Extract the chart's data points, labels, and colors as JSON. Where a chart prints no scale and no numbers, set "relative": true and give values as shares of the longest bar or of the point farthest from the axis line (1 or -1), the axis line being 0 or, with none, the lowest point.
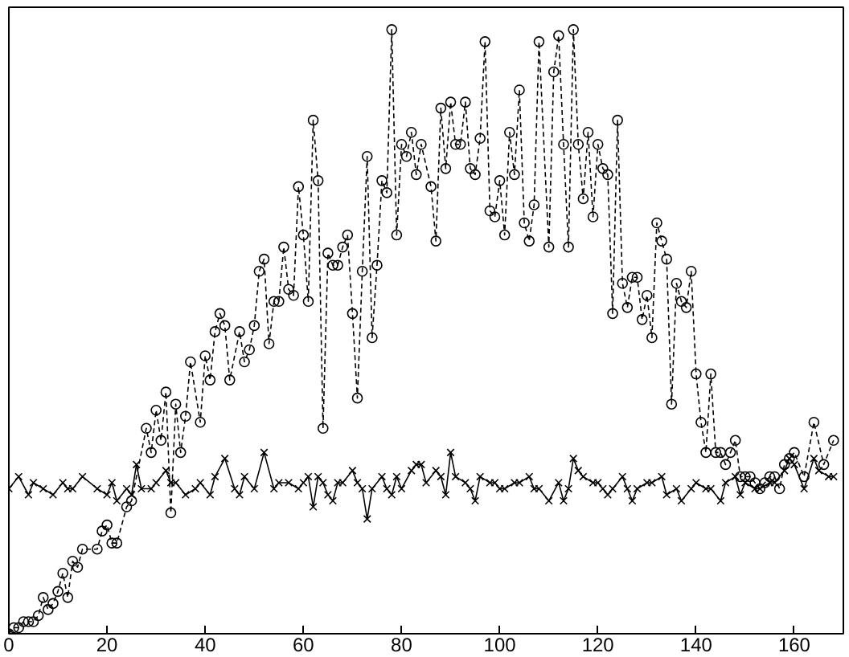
{
  "chart_data": {
    "type": "line",
    "relative": true,
    "xlim": [
      0,
      170
    ],
    "xticks": [
      0,
      20,
      40,
      60,
      80,
      100,
      120,
      140,
      160
    ],
    "tick_labels": "x",
    "series": [
      {
        "color": "#000000",
        "marker": "circle",
        "line_style": "dashed",
        "x": [
          0,
          1,
          2,
          3,
          4,
          5,
          6,
          7,
          8,
          9,
          10,
          11,
          12,
          13,
          14,
          15,
          18,
          19,
          20,
          21,
          22,
          24,
          25,
          28,
          29,
          30,
          31,
          32,
          33,
          34,
          35,
          36,
          37,
          39,
          40,
          41,
          42,
          43,
          44,
          45,
          47,
          48,
          49,
          50,
          51,
          52,
          53,
          54,
          55,
          56,
          57,
          58,
          59,
          60,
          61,
          62,
          63,
          64,
          65,
          66,
          67,
          68,
          69,
          70,
          71,
          72,
          73,
          74,
          75,
          76,
          77,
          78,
          79,
          80,
          81,
          82,
          83,
          84,
          86,
          87,
          88,
          89,
          90,
          91,
          92,
          93,
          94,
          95,
          96,
          97,
          98,
          99,
          100,
          101,
          102,
          103,
          104,
          105,
          106,
          107,
          108,
          110,
          111,
          112,
          113,
          114,
          115,
          116,
          117,
          118,
          119,
          120,
          121,
          122,
          123,
          124,
          125,
          126,
          127,
          128,
          129,
          130,
          131,
          132,
          133,
          134,
          135,
          136,
          137,
          138,
          139,
          140,
          141,
          142,
          143,
          144,
          145,
          146,
          147,
          148,
          149,
          150,
          151,
          152,
          153,
          154,
          155,
          156,
          157,
          158,
          159,
          160,
          162,
          164,
          166,
          168
        ],
        "values": [
          0.0,
          0.01,
          0.01,
          0.02,
          0.02,
          0.02,
          0.03,
          0.06,
          0.04,
          0.05,
          0.07,
          0.1,
          0.06,
          0.12,
          0.11,
          0.14,
          0.14,
          0.17,
          0.18,
          0.15,
          0.15,
          0.21,
          0.22,
          0.34,
          0.3,
          0.37,
          0.32,
          0.4,
          0.2,
          0.38,
          0.3,
          0.36,
          0.45,
          0.35,
          0.46,
          0.42,
          0.5,
          0.53,
          0.51,
          0.42,
          0.5,
          0.45,
          0.47,
          0.51,
          0.6,
          0.62,
          0.48,
          0.55,
          0.55,
          0.64,
          0.57,
          0.56,
          0.74,
          0.66,
          0.55,
          0.85,
          0.75,
          0.34,
          0.63,
          0.61,
          0.61,
          0.64,
          0.66,
          0.53,
          0.39,
          0.6,
          0.79,
          0.49,
          0.61,
          0.75,
          0.73,
          1.0,
          0.66,
          0.81,
          0.79,
          0.83,
          0.76,
          0.81,
          0.74,
          0.65,
          0.87,
          0.77,
          0.88,
          0.81,
          0.81,
          0.88,
          0.77,
          0.76,
          0.82,
          0.98,
          0.7,
          0.69,
          0.75,
          0.66,
          0.83,
          0.76,
          0.9,
          0.68,
          0.65,
          0.71,
          0.98,
          0.64,
          0.93,
          0.99,
          0.81,
          0.64,
          1.0,
          0.81,
          0.72,
          0.83,
          0.69,
          0.81,
          0.77,
          0.76,
          0.53,
          0.85,
          0.58,
          0.54,
          0.59,
          0.59,
          0.52,
          0.56,
          0.49,
          0.68,
          0.65,
          0.62,
          0.38,
          0.58,
          0.55,
          0.54,
          0.6,
          0.43,
          0.35,
          0.3,
          0.43,
          0.3,
          0.3,
          0.28,
          0.3,
          0.32,
          0.26,
          0.26,
          0.26,
          0.25,
          0.24,
          0.25,
          0.26,
          0.26,
          0.24,
          0.28,
          0.29,
          0.3,
          0.26,
          0.35,
          0.28,
          0.32
        ]
      },
      {
        "color": "#000000",
        "marker": "cross",
        "line_style": "solid",
        "x": [
          0,
          2,
          4,
          5,
          7,
          9,
          11,
          12,
          13,
          15,
          18,
          20,
          21,
          22,
          24,
          25,
          26,
          27,
          29,
          30,
          32,
          33,
          34,
          36,
          38,
          39,
          41,
          42,
          44,
          46,
          47,
          48,
          50,
          52,
          54,
          55,
          57,
          59,
          60,
          61,
          62,
          63,
          64,
          65,
          66,
          67,
          68,
          70,
          71,
          72,
          73,
          74,
          76,
          77,
          78,
          79,
          80,
          82,
          83,
          84,
          85,
          87,
          88,
          89,
          90,
          91,
          93,
          94,
          95,
          96,
          98,
          99,
          100,
          101,
          103,
          104,
          106,
          107,
          108,
          110,
          112,
          113,
          114,
          115,
          116,
          117,
          119,
          120,
          121,
          122,
          123,
          125,
          126,
          127,
          128,
          130,
          131,
          133,
          134,
          136,
          137,
          139,
          140,
          142,
          143,
          145,
          146,
          148,
          149,
          150,
          152,
          153,
          155,
          156,
          158,
          159,
          160,
          162,
          164,
          165,
          167,
          168
        ],
        "values": [
          0.24,
          0.26,
          0.23,
          0.25,
          0.24,
          0.23,
          0.25,
          0.24,
          0.24,
          0.26,
          0.24,
          0.23,
          0.25,
          0.22,
          0.24,
          0.23,
          0.28,
          0.24,
          0.24,
          0.25,
          0.27,
          0.25,
          0.25,
          0.23,
          0.24,
          0.25,
          0.23,
          0.26,
          0.29,
          0.24,
          0.23,
          0.26,
          0.24,
          0.3,
          0.24,
          0.25,
          0.25,
          0.24,
          0.25,
          0.26,
          0.21,
          0.26,
          0.25,
          0.23,
          0.22,
          0.25,
          0.25,
          0.27,
          0.25,
          0.24,
          0.19,
          0.24,
          0.26,
          0.24,
          0.23,
          0.26,
          0.24,
          0.27,
          0.28,
          0.28,
          0.25,
          0.27,
          0.26,
          0.23,
          0.3,
          0.26,
          0.25,
          0.24,
          0.22,
          0.26,
          0.25,
          0.25,
          0.24,
          0.24,
          0.25,
          0.25,
          0.26,
          0.24,
          0.24,
          0.22,
          0.25,
          0.22,
          0.24,
          0.29,
          0.27,
          0.26,
          0.25,
          0.25,
          0.24,
          0.23,
          0.24,
          0.26,
          0.24,
          0.22,
          0.24,
          0.25,
          0.25,
          0.26,
          0.23,
          0.24,
          0.22,
          0.24,
          0.25,
          0.24,
          0.24,
          0.22,
          0.25,
          0.26,
          0.23,
          0.25,
          0.24,
          0.24,
          0.25,
          0.25,
          0.27,
          0.29,
          0.28,
          0.24,
          0.29,
          0.27,
          0.26,
          0.26
        ]
      }
    ]
  }
}
